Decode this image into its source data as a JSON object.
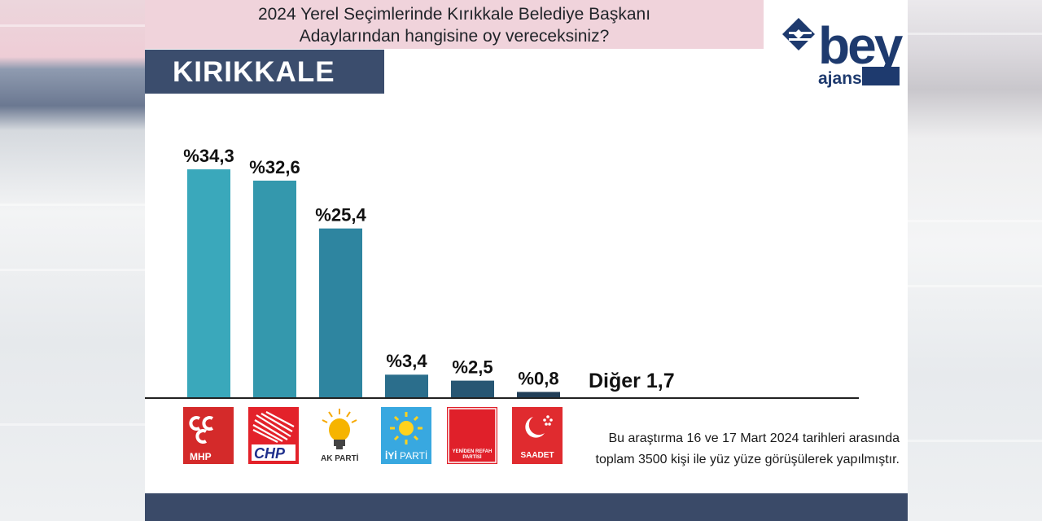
{
  "header": {
    "title_line1": "2024 Yerel Seçimlerinde Kırıkkale Belediye Başkanı",
    "title_line2": "Adaylarından hangisine oy vereceksiniz?",
    "city": "KIRIKKALE"
  },
  "brand": {
    "name": "bey",
    "sub": "ajans",
    "color": "#1e3a6e"
  },
  "chart_data": {
    "type": "bar",
    "categories": [
      "MHP",
      "CHP",
      "AK PARTİ",
      "İYİ PARTİ",
      "YENİDEN REFAH PARTİSİ",
      "SAADET"
    ],
    "values": [
      34.3,
      32.6,
      25.4,
      3.4,
      2.5,
      0.8
    ],
    "value_labels": [
      "%34,3",
      "%32,6",
      "%25,4",
      "%3,4",
      "%2,5",
      "%0,8"
    ],
    "colors": [
      "#3aa8bb",
      "#3498ad",
      "#2e85a0",
      "#2b6e8c",
      "#275673",
      "#223f58"
    ],
    "other_label": "Diğer 1,7",
    "title": "",
    "xlabel": "",
    "ylabel": "",
    "grid": false,
    "legend": "none"
  },
  "parties": {
    "mhp": "MHP",
    "chp": "CHP",
    "akp": "AK PARTİ",
    "iyi_prefix": "İYİ",
    "iyi_suffix": "PARTİ",
    "yrp_line1": "YENİDEN REFAH",
    "yrp_line2": "PARTİSİ",
    "saadet": "SAADET"
  },
  "footnote": {
    "line1": "Bu araştırma 16 ve 17 Mart 2024 tarihleri arasında",
    "line2": "toplam 3500 kişi ile yüz yüze görüşülerek yapılmıştır."
  }
}
